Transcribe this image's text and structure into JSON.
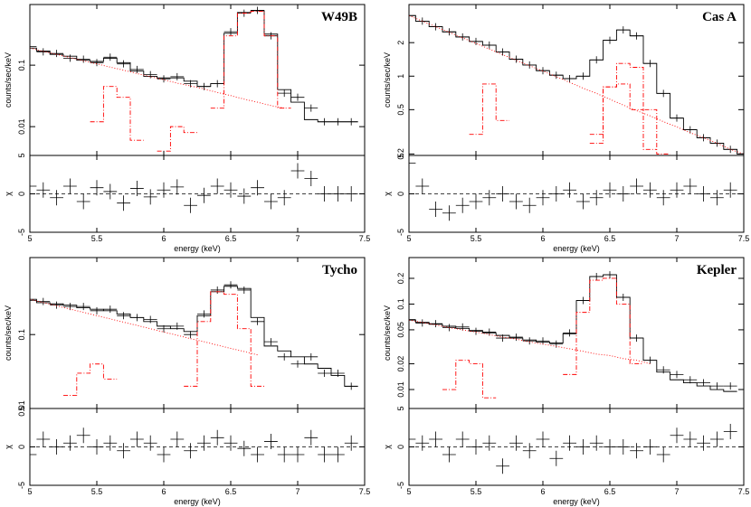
{
  "chart_data": [
    {
      "type": "line",
      "title": "W49B",
      "xlabel": "energy (keV)",
      "ylabel": "counts/sec/keV",
      "log_y": true,
      "x": [
        5.0,
        5.1,
        5.2,
        5.3,
        5.4,
        5.5,
        5.6,
        5.7,
        5.8,
        5.9,
        6.0,
        6.1,
        6.2,
        6.3,
        6.4,
        6.5,
        6.6,
        6.7,
        6.8,
        6.9,
        7.0,
        7.1,
        7.2,
        7.3,
        7.4,
        7.5
      ],
      "xlim": [
        5,
        7.5
      ],
      "xticks": [
        5,
        5.5,
        6,
        6.5,
        7,
        7.5
      ],
      "ylim": [
        0.0034,
        0.97
      ],
      "yticks": [
        0.01,
        0.1
      ],
      "series": [
        {
          "style": "data",
          "color": "#000000",
          "values": [
            0.2,
            0.165,
            0.155,
            0.13,
            0.125,
            0.11,
            0.135,
            0.105,
            0.085,
            0.07,
            0.06,
            0.065,
            0.05,
            0.045,
            0.05,
            0.35,
            0.7,
            0.78,
            0.3,
            0.035,
            0.03,
            0.02,
            0.012,
            0.012,
            0.012,
            null
          ]
        },
        {
          "style": "step",
          "color": "#000000",
          "values": [
            0.19,
            0.17,
            0.15,
            0.14,
            0.12,
            0.115,
            0.13,
            0.11,
            0.08,
            0.066,
            0.062,
            0.062,
            0.055,
            0.045,
            0.05,
            0.33,
            0.72,
            0.77,
            0.32,
            0.04,
            0.025,
            0.013,
            0.012,
            0.012,
            0.012,
            null
          ]
        },
        {
          "style": "dotted",
          "color": "#ff0000",
          "values": [
            0.19,
            0.168,
            0.15,
            0.133,
            0.118,
            0.105,
            0.093,
            0.083,
            0.073,
            0.065,
            0.058,
            0.051,
            0.046,
            0.041,
            0.036,
            0.032,
            0.028,
            0.025,
            0.022,
            0.02,
            null,
            null,
            null,
            null,
            null,
            null
          ]
        },
        {
          "style": "dashdot",
          "color": "#ff0000",
          "values": [
            null,
            null,
            null,
            null,
            null,
            0.012,
            0.045,
            0.03,
            0.006,
            null,
            null,
            null,
            null,
            null,
            null,
            null,
            null,
            null,
            null,
            null,
            null,
            null,
            null,
            null,
            null,
            null
          ]
        },
        {
          "style": "dashdot",
          "color": "#ff0000",
          "values": [
            null,
            null,
            null,
            null,
            null,
            null,
            null,
            null,
            null,
            null,
            0.004,
            0.01,
            0.008,
            null,
            null,
            null,
            null,
            null,
            null,
            null,
            null,
            null,
            null,
            null,
            null,
            null
          ]
        },
        {
          "style": "dashdot",
          "color": "#ff0000",
          "values": [
            null,
            null,
            null,
            null,
            null,
            null,
            null,
            null,
            null,
            null,
            null,
            null,
            null,
            null,
            0.02,
            0.3,
            0.7,
            0.75,
            0.3,
            0.02,
            null,
            null,
            null,
            null,
            null,
            null
          ]
        }
      ],
      "residual": {
        "ylabel": "χ",
        "ylim": [
          -5,
          5
        ],
        "yticks": [
          -5,
          0,
          5
        ],
        "values": [
          1,
          0.5,
          -0.5,
          1,
          -1,
          0.8,
          0.3,
          -1.2,
          0.7,
          -0.4,
          0.5,
          0.9,
          -1.5,
          -0.2,
          1,
          0.5,
          -0.3,
          0.8,
          -1,
          -0.5,
          3,
          2,
          0,
          0,
          0,
          null
        ]
      }
    },
    {
      "type": "line",
      "title": "Cas A",
      "xlabel": "energy (keV)",
      "ylabel": "counts/sec/keV",
      "log_y": true,
      "x": [
        5.0,
        5.1,
        5.2,
        5.3,
        5.4,
        5.5,
        5.6,
        5.7,
        5.8,
        5.9,
        6.0,
        6.1,
        6.2,
        6.3,
        6.4,
        6.5,
        6.6,
        6.7,
        6.8,
        6.9,
        7.0,
        7.1,
        7.2,
        7.3,
        7.4,
        7.5
      ],
      "xlim": [
        5,
        7.5
      ],
      "xticks": [
        5,
        5.5,
        6,
        6.5,
        7,
        7.5
      ],
      "ylim": [
        0.194,
        4.4
      ],
      "yticks": [
        0.2,
        0.5,
        1,
        2
      ],
      "series": [
        {
          "style": "data",
          "color": "#000000",
          "values": [
            3.5,
            3.12,
            2.78,
            2.5,
            2.25,
            2.05,
            1.9,
            1.65,
            1.42,
            1.26,
            1.12,
            1.02,
            0.95,
            1.0,
            1.4,
            2.1,
            2.6,
            2.3,
            1.3,
            0.7,
            0.42,
            0.33,
            0.28,
            0.25,
            0.22,
            0.2
          ]
        },
        {
          "style": "step",
          "color": "#000000",
          "values": [
            3.5,
            3.12,
            2.78,
            2.5,
            2.25,
            2.05,
            1.9,
            1.65,
            1.42,
            1.26,
            1.12,
            1.02,
            0.95,
            1.0,
            1.4,
            2.1,
            2.6,
            2.3,
            1.3,
            0.7,
            0.42,
            0.33,
            0.28,
            0.25,
            0.22,
            0.2
          ]
        },
        {
          "style": "dotted",
          "color": "#ff0000",
          "values": [
            3.5,
            3.12,
            2.78,
            2.48,
            2.21,
            1.97,
            1.75,
            1.56,
            1.39,
            1.24,
            1.11,
            0.99,
            0.88,
            0.78,
            0.7,
            0.62,
            0.55,
            0.49,
            0.44,
            0.39,
            0.35,
            0.31,
            0.28,
            0.25,
            0.22,
            0.2
          ]
        },
        {
          "style": "dashdot",
          "color": "#ff0000",
          "values": [
            null,
            null,
            null,
            null,
            null,
            0.3,
            0.85,
            0.4,
            null,
            null,
            null,
            null,
            null,
            null,
            null,
            null,
            null,
            null,
            null,
            null,
            null,
            null,
            null,
            null,
            null,
            null
          ]
        },
        {
          "style": "dashdot",
          "color": "#ff0000",
          "values": [
            null,
            null,
            null,
            null,
            null,
            null,
            null,
            null,
            null,
            null,
            null,
            null,
            null,
            null,
            0.3,
            0.8,
            0.85,
            0.5,
            0.22,
            null,
            null,
            null,
            null,
            null,
            null,
            null
          ]
        },
        {
          "style": "dashdot",
          "color": "#ff0000",
          "values": [
            null,
            null,
            null,
            null,
            null,
            null,
            null,
            null,
            null,
            null,
            null,
            null,
            null,
            null,
            0.25,
            0.8,
            1.3,
            1.2,
            0.5,
            0.2,
            null,
            null,
            null,
            null,
            null,
            null
          ]
        }
      ],
      "residual": {
        "ylabel": "χ",
        "ylim": [
          -5,
          5
        ],
        "yticks": [
          -5,
          0,
          5
        ],
        "values": [
          4,
          1,
          -2,
          -2.5,
          -1.5,
          -1,
          -0.5,
          0,
          -1,
          -1.5,
          -0.5,
          0,
          0.5,
          -1,
          -0.5,
          0.5,
          0,
          1,
          0.5,
          -0.5,
          0.5,
          1,
          0,
          -0.5,
          0.5,
          0
        ]
      }
    },
    {
      "type": "line",
      "title": "Tycho",
      "xlabel": "energy (keV)",
      "ylabel": "counts/sec/keV",
      "log_y": true,
      "x": [
        5.0,
        5.1,
        5.2,
        5.3,
        5.4,
        5.5,
        5.6,
        5.7,
        5.8,
        5.9,
        6.0,
        6.1,
        6.2,
        6.3,
        6.4,
        6.5,
        6.6,
        6.7,
        6.8,
        6.9,
        7.0,
        7.1,
        7.2,
        7.3,
        7.4,
        7.5
      ],
      "xlim": [
        5,
        7.5
      ],
      "xticks": [
        5,
        5.5,
        6,
        6.5,
        7,
        7.5
      ],
      "ylim": [
        0.01,
        1.1
      ],
      "yticks": [
        0.01,
        0.1
      ],
      "series": [
        {
          "style": "data",
          "color": "#000000",
          "values": [
            0.29,
            0.28,
            0.25,
            0.24,
            0.24,
            0.21,
            0.22,
            0.18,
            0.17,
            0.16,
            0.12,
            0.13,
            0.1,
            0.19,
            0.4,
            0.47,
            0.4,
            0.15,
            0.08,
            0.05,
            0.04,
            0.05,
            0.03,
            0.03,
            0.02,
            null
          ]
        },
        {
          "style": "step",
          "color": "#000000",
          "values": [
            0.3,
            0.27,
            0.26,
            0.25,
            0.23,
            0.22,
            0.21,
            0.19,
            0.17,
            0.15,
            0.13,
            0.12,
            0.11,
            0.18,
            0.38,
            0.45,
            0.42,
            0.17,
            0.07,
            0.06,
            0.05,
            0.04,
            0.035,
            0.028,
            0.02,
            null
          ]
        },
        {
          "style": "dotted",
          "color": "#ff0000",
          "values": [
            0.3,
            0.271,
            0.245,
            0.221,
            0.2,
            0.18,
            0.163,
            0.147,
            0.133,
            0.12,
            0.108,
            0.098,
            0.088,
            0.08,
            0.072,
            0.065,
            0.059,
            0.053,
            null,
            null,
            null,
            null,
            null,
            null,
            null,
            null
          ]
        },
        {
          "style": "dashdot",
          "color": "#ff0000",
          "values": [
            null,
            null,
            null,
            0.015,
            0.03,
            0.04,
            0.025,
            null,
            null,
            null,
            null,
            null,
            null,
            null,
            null,
            null,
            null,
            null,
            null,
            null,
            null,
            null,
            null,
            null,
            null,
            null
          ]
        },
        {
          "style": "dashdot",
          "color": "#ff0000",
          "values": [
            null,
            null,
            null,
            null,
            null,
            null,
            null,
            null,
            null,
            null,
            null,
            null,
            0.02,
            0.15,
            0.38,
            0.35,
            0.12,
            0.02,
            null,
            null,
            null,
            null,
            null,
            null,
            null,
            null
          ]
        }
      ],
      "residual": {
        "ylabel": "χ",
        "ylim": [
          -5,
          5
        ],
        "yticks": [
          -5,
          0,
          5
        ],
        "values": [
          -1,
          1,
          0,
          0.5,
          1.5,
          0,
          0.5,
          -0.5,
          1,
          0.5,
          -1,
          1,
          -0.5,
          0.5,
          1.2,
          0.5,
          -0.2,
          -1,
          0.7,
          -1,
          -1,
          1.2,
          -1,
          -1,
          0.5,
          null
        ]
      }
    },
    {
      "type": "line",
      "title": "Kepler",
      "xlabel": "energy (keV)",
      "ylabel": "counts/sec/keV",
      "log_y": true,
      "x": [
        5.0,
        5.1,
        5.2,
        5.3,
        5.4,
        5.5,
        5.6,
        5.7,
        5.8,
        5.9,
        6.0,
        6.1,
        6.2,
        6.3,
        6.4,
        6.5,
        6.6,
        6.7,
        6.8,
        6.9,
        7.0,
        7.1,
        7.2,
        7.3,
        7.4,
        7.5
      ],
      "xlim": [
        5,
        7.5
      ],
      "xticks": [
        5,
        5.5,
        6,
        6.5,
        7,
        7.5
      ],
      "ylim": [
        0.006,
        0.35
      ],
      "yticks": [
        0.01,
        0.02,
        0.05,
        0.1,
        0.2
      ],
      "series": [
        {
          "style": "data",
          "color": "#000000",
          "values": [
            0.066,
            0.06,
            0.059,
            0.053,
            0.054,
            0.048,
            0.047,
            0.04,
            0.041,
            0.037,
            0.037,
            0.034,
            0.046,
            0.11,
            0.21,
            0.22,
            0.12,
            0.04,
            0.022,
            0.017,
            0.015,
            0.013,
            0.012,
            0.011,
            0.011,
            null
          ]
        },
        {
          "style": "step",
          "color": "#000000",
          "values": [
            0.065,
            0.061,
            0.058,
            0.055,
            0.052,
            0.049,
            0.046,
            0.043,
            0.04,
            0.038,
            0.036,
            0.035,
            0.045,
            0.11,
            0.21,
            0.22,
            0.12,
            0.04,
            0.022,
            0.016,
            0.013,
            0.012,
            0.011,
            0.01,
            0.0095,
            null
          ]
        },
        {
          "style": "dotted",
          "color": "#ff0000",
          "values": [
            0.065,
            0.061,
            0.057,
            0.053,
            0.05,
            0.047,
            0.044,
            0.041,
            0.039,
            0.036,
            0.034,
            0.032,
            0.03,
            0.028,
            0.026,
            0.025,
            0.023,
            0.022,
            0.02,
            null,
            null,
            null,
            null,
            null,
            null,
            null
          ]
        },
        {
          "style": "dashdot",
          "color": "#ff0000",
          "values": [
            null,
            null,
            null,
            0.01,
            0.022,
            0.02,
            0.008,
            null,
            null,
            null,
            null,
            null,
            null,
            null,
            null,
            null,
            null,
            null,
            null,
            null,
            null,
            null,
            null,
            null,
            null,
            null
          ]
        },
        {
          "style": "dashdot",
          "color": "#ff0000",
          "values": [
            null,
            null,
            null,
            null,
            null,
            null,
            null,
            null,
            null,
            null,
            null,
            null,
            0.015,
            0.08,
            0.19,
            0.2,
            0.1,
            0.02,
            null,
            null,
            null,
            null,
            null,
            null,
            null,
            null
          ]
        }
      ],
      "residual": {
        "ylabel": "χ",
        "ylim": [
          -5,
          5
        ],
        "yticks": [
          -5,
          0,
          5
        ],
        "values": [
          1,
          0.5,
          1,
          -1,
          1,
          0,
          0.5,
          -2.5,
          0.5,
          -0.5,
          1,
          -1.5,
          0.5,
          0,
          0.5,
          0,
          0,
          -0.5,
          0,
          -1,
          1.5,
          1,
          0.5,
          1,
          2,
          null
        ]
      }
    }
  ]
}
